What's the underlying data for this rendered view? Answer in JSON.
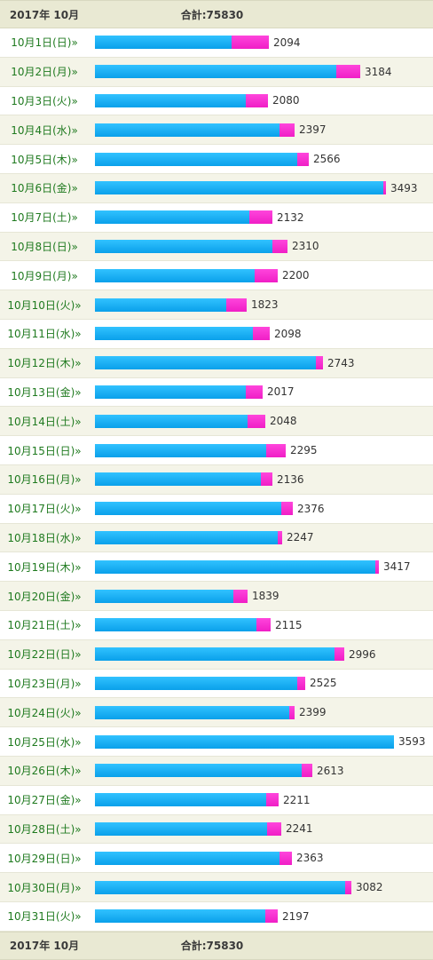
{
  "header": {
    "month_label": "2017年 10月",
    "total_label": "合計:75830"
  },
  "footer": {
    "month_label": "2017年 10月",
    "total_label": "合計:75830"
  },
  "colors": {
    "primary_segment": "#0aa0ea",
    "secondary_segment": "#f01ec6",
    "day_link": "#1f7a1f"
  },
  "chart_data": {
    "type": "bar",
    "orientation": "horizontal",
    "stacked": true,
    "title": "",
    "xlabel": "",
    "ylabel": "",
    "categories": [
      "10月1日(日)",
      "10月2日(月)",
      "10月3日(火)",
      "10月4日(水)",
      "10月5日(木)",
      "10月6日(金)",
      "10月7日(土)",
      "10月8日(日)",
      "10月9日(月)",
      "10月10日(火)",
      "10月11日(水)",
      "10月12日(木)",
      "10月13日(金)",
      "10月14日(土)",
      "10月15日(日)",
      "10月16日(月)",
      "10月17日(火)",
      "10月18日(水)",
      "10月19日(木)",
      "10月20日(金)",
      "10月21日(土)",
      "10月22日(日)",
      "10月23日(月)",
      "10月24日(火)",
      "10月25日(水)",
      "10月26日(木)",
      "10月27日(金)",
      "10月28日(土)",
      "10月29日(日)",
      "10月30日(月)",
      "10月31日(火)"
    ],
    "series": [
      {
        "values": [
          1640,
          2900,
          1810,
          2220,
          2430,
          3470,
          1850,
          2130,
          1920,
          1580,
          1900,
          2660,
          1810,
          1830,
          2060,
          1990,
          2240,
          2200,
          3370,
          1660,
          1940,
          2880,
          2430,
          2330,
          3610,
          2480,
          2060,
          2070,
          2220,
          3010,
          2050
        ]
      },
      {
        "values": [
          454,
          284,
          270,
          177,
          136,
          23,
          282,
          180,
          280,
          243,
          198,
          83,
          207,
          218,
          235,
          146,
          136,
          47,
          47,
          179,
          175,
          116,
          95,
          69,
          -17,
          133,
          151,
          171,
          143,
          72,
          147
        ]
      }
    ],
    "totals": [
      2094,
      3184,
      2080,
      2397,
      2566,
      3493,
      2132,
      2310,
      2200,
      1823,
      2098,
      2743,
      2017,
      2048,
      2295,
      2136,
      2376,
      2247,
      3417,
      1839,
      2115,
      2996,
      2525,
      2399,
      3593,
      2613,
      2211,
      2241,
      2363,
      3082,
      2197
    ],
    "xlim": [
      0,
      3593
    ]
  }
}
